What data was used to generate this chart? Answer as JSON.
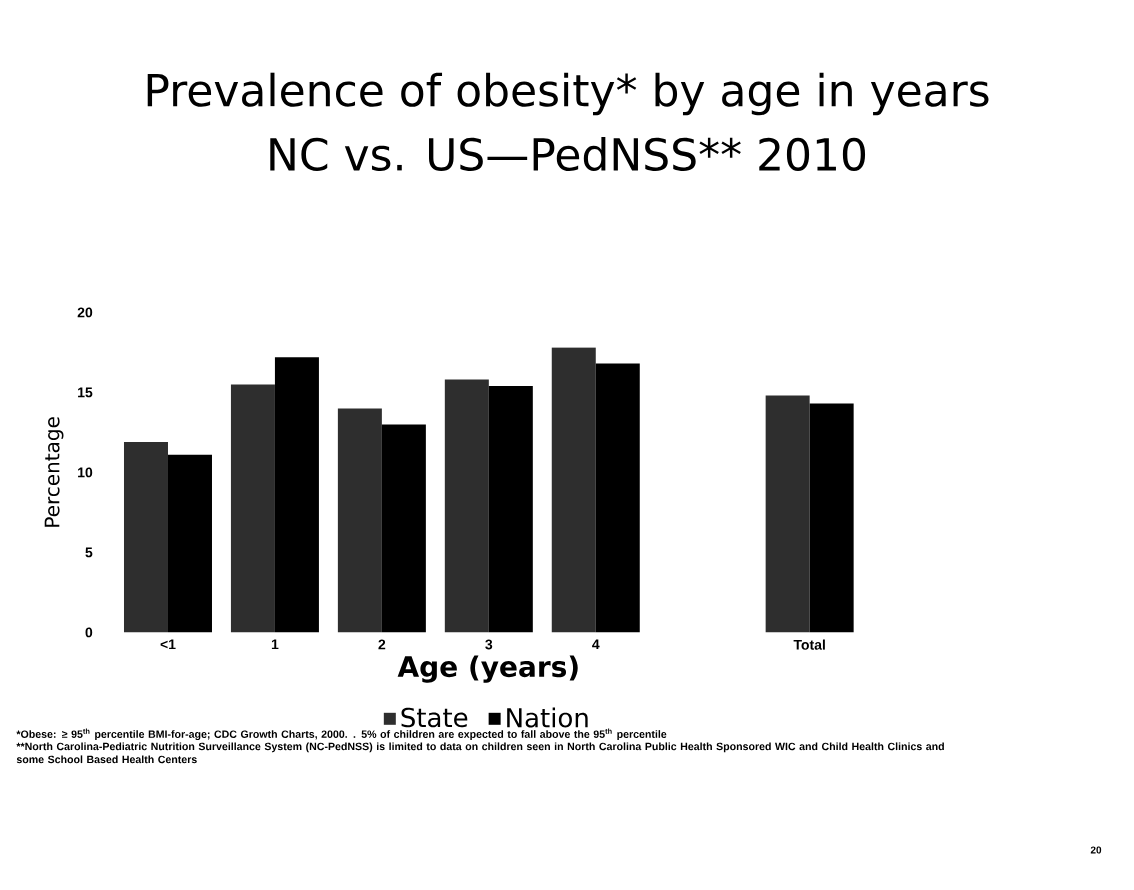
{
  "chart_data": {
    "type": "bar",
    "title": "Prevalence of obesity* by age in years",
    "subtitle": "NC vs. US—PedNSS** 2010",
    "categories": [
      "<1",
      "1",
      "2",
      "3",
      "4",
      null,
      "Total"
    ],
    "series": [
      {
        "name": "State",
        "color": "#2e2e2e",
        "values": [
          11.9,
          15.5,
          14.0,
          15.8,
          17.8,
          null,
          14.8
        ]
      },
      {
        "name": "Nation",
        "color": "#000000",
        "values": [
          11.1,
          17.2,
          13.0,
          15.4,
          16.8,
          null,
          14.3
        ]
      }
    ],
    "xlabel": "Age (years)",
    "ylabel": "Percentage",
    "ylim": [
      0,
      20
    ],
    "yticks": [
      0,
      5,
      10,
      15,
      20
    ],
    "legend": "bottom",
    "annotations": [
      "*Obese: ≥ 95$^{th}$ percentile BMI-for-age; CDC Growth Charts, 2000. . 5% of children are expected to fall above the 95$^{th}$ percentile",
      "**North Carolina-Pediatric Nutrition Surveillance System (NC-PedNSS) is limited to data on children seen in North Carolina Public Health Sponsored WIC and Child Health Clinics and some School Based Health Centers",
      "20"
    ]
  }
}
